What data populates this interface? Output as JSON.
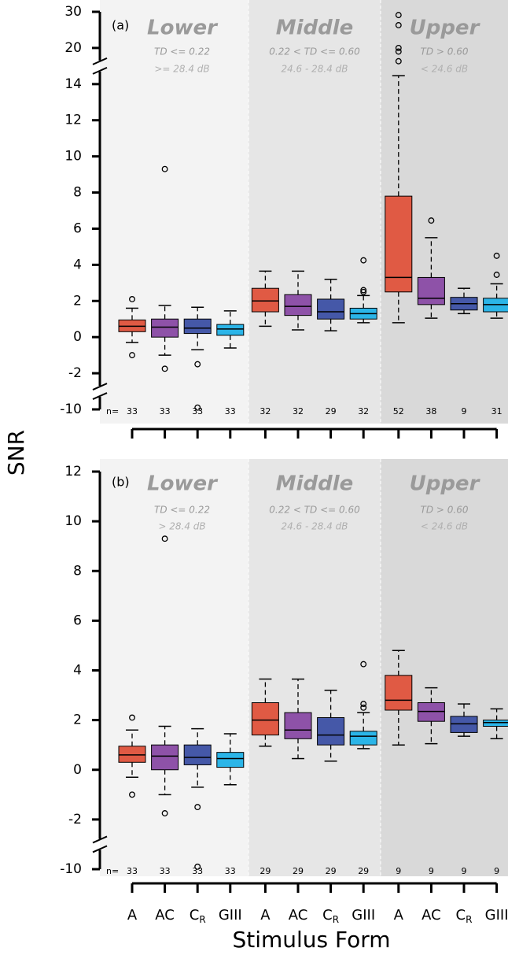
{
  "chart_data": [
    {
      "type": "box",
      "panel_label": "(a)",
      "y_label": "SNR",
      "n_prefix": "n=",
      "ylim": [
        -10,
        30
      ],
      "yticks": [
        -10,
        -2,
        0,
        2,
        4,
        6,
        8,
        10,
        12,
        14,
        20,
        30
      ],
      "y_breaks": [
        [
          -10,
          -2
        ],
        [
          14,
          20
        ]
      ],
      "box_colors": [
        "#e05a44",
        "#8e52a8",
        "#4558a8",
        "#2bb5e8"
      ],
      "groups": [
        {
          "name": "Lower",
          "criterion": "TD <= 0.22",
          "range": ">= 28.4 dB",
          "shade": "#f3f3f3",
          "boxes": [
            {
              "whisker_low": -0.3,
              "q1": 0.3,
              "median": 0.6,
              "q3": 0.95,
              "whisker_high": 1.6,
              "outliers": [
                2.1,
                -1.0
              ],
              "n": 33
            },
            {
              "whisker_low": -1.0,
              "q1": 0.0,
              "median": 0.55,
              "q3": 1.0,
              "whisker_high": 1.75,
              "outliers": [
                9.3,
                -1.75
              ],
              "n": 33
            },
            {
              "whisker_low": -0.7,
              "q1": 0.2,
              "median": 0.5,
              "q3": 1.0,
              "whisker_high": 1.65,
              "outliers": [
                -1.5,
                -9.6
              ],
              "n": 33
            },
            {
              "whisker_low": -0.6,
              "q1": 0.1,
              "median": 0.45,
              "q3": 0.7,
              "whisker_high": 1.45,
              "outliers": [],
              "n": 33
            }
          ]
        },
        {
          "name": "Middle",
          "criterion": "0.22 < TD <= 0.60",
          "range": "24.6 - 28.4 dB",
          "shade": "#e6e6e6",
          "boxes": [
            {
              "whisker_low": 0.6,
              "q1": 1.4,
              "median": 2.0,
              "q3": 2.7,
              "whisker_high": 3.65,
              "outliers": [],
              "n": 32
            },
            {
              "whisker_low": 0.4,
              "q1": 1.2,
              "median": 1.7,
              "q3": 2.35,
              "whisker_high": 3.65,
              "outliers": [],
              "n": 32
            },
            {
              "whisker_low": 0.35,
              "q1": 1.0,
              "median": 1.4,
              "q3": 2.1,
              "whisker_high": 3.2,
              "outliers": [],
              "n": 29
            },
            {
              "whisker_low": 0.8,
              "q1": 1.0,
              "median": 1.3,
              "q3": 1.6,
              "whisker_high": 2.3,
              "outliers": [
                2.5,
                2.6,
                4.25
              ],
              "n": 32
            }
          ]
        },
        {
          "name": "Upper",
          "criterion": "TD > 0.60",
          "range": "< 24.6 dB",
          "shade": "#d9d9d9",
          "boxes": [
            {
              "whisker_low": 0.8,
              "q1": 2.5,
              "median": 3.3,
              "q3": 7.8,
              "whisker_high": 15.4,
              "outliers": [
                17.8,
                19.4,
                20,
                26.3,
                29.1
              ],
              "n": 52
            },
            {
              "whisker_low": 1.05,
              "q1": 1.8,
              "median": 2.15,
              "q3": 3.3,
              "whisker_high": 5.5,
              "outliers": [
                6.45
              ],
              "n": 38
            },
            {
              "whisker_low": 1.3,
              "q1": 1.5,
              "median": 1.85,
              "q3": 2.2,
              "whisker_high": 2.7,
              "outliers": [],
              "n": 9
            },
            {
              "whisker_low": 1.05,
              "q1": 1.4,
              "median": 1.8,
              "q3": 2.15,
              "whisker_high": 2.95,
              "outliers": [
                3.45,
                4.5
              ],
              "n": 31
            }
          ]
        }
      ]
    },
    {
      "type": "box",
      "panel_label": "(b)",
      "x_label": "Stimulus Form",
      "n_prefix": "n=",
      "categories": [
        "A",
        "AC",
        {
          "text": "C",
          "sub": "R"
        },
        "GIII"
      ],
      "ylim": [
        -10,
        12
      ],
      "yticks": [
        -10,
        -2,
        0,
        2,
        4,
        6,
        8,
        10,
        12
      ],
      "y_breaks": [
        [
          -10,
          -2
        ]
      ],
      "box_colors": [
        "#e05a44",
        "#8e52a8",
        "#4558a8",
        "#2bb5e8"
      ],
      "groups": [
        {
          "name": "Lower",
          "criterion": "TD <= 0.22",
          "range": "> 28.4 dB",
          "shade": "#f3f3f3",
          "boxes": [
            {
              "whisker_low": -0.3,
              "q1": 0.3,
              "median": 0.6,
              "q3": 0.95,
              "whisker_high": 1.6,
              "outliers": [
                2.1,
                -1.0
              ],
              "n": 33
            },
            {
              "whisker_low": -1.0,
              "q1": 0.0,
              "median": 0.55,
              "q3": 1.0,
              "whisker_high": 1.75,
              "outliers": [
                9.3,
                -1.75
              ],
              "n": 33
            },
            {
              "whisker_low": -0.7,
              "q1": 0.2,
              "median": 0.5,
              "q3": 1.0,
              "whisker_high": 1.65,
              "outliers": [
                -1.5,
                -9.6
              ],
              "n": 33
            },
            {
              "whisker_low": -0.6,
              "q1": 0.1,
              "median": 0.45,
              "q3": 0.7,
              "whisker_high": 1.45,
              "outliers": [],
              "n": 33
            }
          ]
        },
        {
          "name": "Middle",
          "criterion": "0.22 < TD <= 0.60",
          "range": "24.6 - 28.4 dB",
          "shade": "#e6e6e6",
          "boxes": [
            {
              "whisker_low": 0.95,
              "q1": 1.4,
              "median": 2.0,
              "q3": 2.7,
              "whisker_high": 3.65,
              "outliers": [],
              "n": 29
            },
            {
              "whisker_low": 0.45,
              "q1": 1.25,
              "median": 1.6,
              "q3": 2.3,
              "whisker_high": 3.65,
              "outliers": [],
              "n": 29
            },
            {
              "whisker_low": 0.35,
              "q1": 1.0,
              "median": 1.4,
              "q3": 2.1,
              "whisker_high": 3.2,
              "outliers": [],
              "n": 29
            },
            {
              "whisker_low": 0.85,
              "q1": 1.0,
              "median": 1.35,
              "q3": 1.55,
              "whisker_high": 2.3,
              "outliers": [
                2.5,
                2.65,
                4.25
              ],
              "n": 29
            }
          ]
        },
        {
          "name": "Upper",
          "criterion": "TD > 0.60",
          "range": "< 24.6 dB",
          "shade": "#d9d9d9",
          "boxes": [
            {
              "whisker_low": 1.0,
              "q1": 2.4,
              "median": 2.8,
              "q3": 3.8,
              "whisker_high": 4.8,
              "outliers": [],
              "n": 9
            },
            {
              "whisker_low": 1.05,
              "q1": 1.95,
              "median": 2.35,
              "q3": 2.7,
              "whisker_high": 3.3,
              "outliers": [],
              "n": 9
            },
            {
              "whisker_low": 1.35,
              "q1": 1.5,
              "median": 1.85,
              "q3": 2.15,
              "whisker_high": 2.65,
              "outliers": [],
              "n": 9
            },
            {
              "whisker_low": 1.25,
              "q1": 1.75,
              "median": 1.9,
              "q3": 2.0,
              "whisker_high": 2.45,
              "outliers": [],
              "n": 9
            }
          ]
        }
      ]
    }
  ]
}
